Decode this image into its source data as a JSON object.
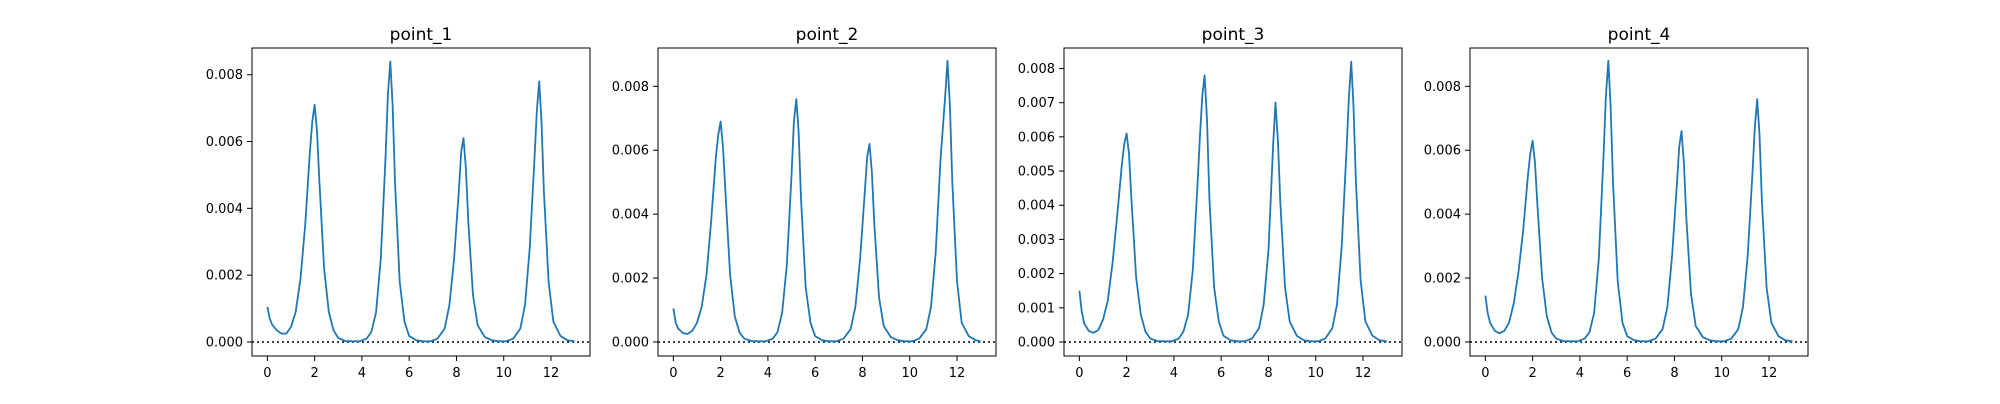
{
  "colors": {
    "line": "#1f77b4",
    "axes": "#000000",
    "background": "#ffffff"
  },
  "chart_data": [
    {
      "type": "line",
      "title": "point_1",
      "xlim": [
        -0.65,
        13.65
      ],
      "ylim": [
        -0.00042,
        0.0088
      ],
      "xticks": [
        "0",
        "2",
        "4",
        "6",
        "8",
        "10",
        "12"
      ],
      "yticks": [
        "0.000",
        "0.002",
        "0.004",
        "0.006",
        "0.008"
      ],
      "reference_line": {
        "y": 0,
        "style": "dotted"
      },
      "peaks": [
        {
          "x": 2.0,
          "y": 0.0071
        },
        {
          "x": 5.2,
          "y": 0.0084
        },
        {
          "x": 8.3,
          "y": 0.0061
        },
        {
          "x": 11.5,
          "y": 0.0078
        }
      ],
      "series": [
        {
          "x": [
            0,
            0.1,
            0.2,
            0.4,
            0.6,
            0.8,
            1.0,
            1.2,
            1.4,
            1.6,
            1.8,
            1.9,
            2.0,
            2.1,
            2.2,
            2.4,
            2.6,
            2.8,
            3.0,
            3.3,
            3.6,
            3.9,
            4.2,
            4.4,
            4.6,
            4.8,
            5.0,
            5.1,
            5.2,
            5.3,
            5.4,
            5.6,
            5.8,
            6.0,
            6.3,
            6.6,
            6.9,
            7.2,
            7.5,
            7.7,
            7.9,
            8.1,
            8.2,
            8.3,
            8.4,
            8.5,
            8.7,
            8.9,
            9.2,
            9.5,
            9.8,
            10.1,
            10.4,
            10.7,
            10.9,
            11.1,
            11.3,
            11.4,
            11.5,
            11.6,
            11.7,
            11.9,
            12.1,
            12.4,
            12.7,
            13.0
          ],
          "y": [
            0.00105,
            0.0007,
            0.00052,
            0.00035,
            0.00025,
            0.00025,
            0.00045,
            0.0009,
            0.0019,
            0.0035,
            0.0057,
            0.0066,
            0.0071,
            0.0063,
            0.0048,
            0.0022,
            0.0009,
            0.00035,
            0.00012,
            3e-05,
            2e-05,
            2e-05,
            0.0001,
            0.0003,
            0.0009,
            0.0025,
            0.0055,
            0.0074,
            0.0084,
            0.0071,
            0.0048,
            0.0018,
            0.0006,
            0.00018,
            5e-05,
            2e-05,
            2e-05,
            0.0001,
            0.0004,
            0.0011,
            0.0025,
            0.0045,
            0.0057,
            0.0061,
            0.0052,
            0.0036,
            0.0014,
            0.0005,
            0.00015,
            5e-05,
            2e-05,
            2e-05,
            0.0001,
            0.0004,
            0.0011,
            0.0028,
            0.0055,
            0.0069,
            0.0078,
            0.0066,
            0.0045,
            0.0018,
            0.0006,
            0.00018,
            5e-05,
            2e-05
          ]
        }
      ]
    },
    {
      "type": "line",
      "title": "point_2",
      "xlim": [
        -0.65,
        13.65
      ],
      "ylim": [
        -0.00044,
        0.0092
      ],
      "xticks": [
        "0",
        "2",
        "4",
        "6",
        "8",
        "10",
        "12"
      ],
      "yticks": [
        "0.000",
        "0.002",
        "0.004",
        "0.006",
        "0.008"
      ],
      "reference_line": {
        "y": 0,
        "style": "dotted"
      },
      "peaks": [
        {
          "x": 2.0,
          "y": 0.0069
        },
        {
          "x": 5.2,
          "y": 0.0076
        },
        {
          "x": 8.3,
          "y": 0.0062
        },
        {
          "x": 11.6,
          "y": 0.0088
        }
      ],
      "series": [
        {
          "x": [
            0,
            0.1,
            0.2,
            0.4,
            0.6,
            0.8,
            1.0,
            1.2,
            1.4,
            1.6,
            1.8,
            1.9,
            2.0,
            2.1,
            2.2,
            2.4,
            2.6,
            2.8,
            3.0,
            3.3,
            3.6,
            3.9,
            4.2,
            4.4,
            4.6,
            4.8,
            5.0,
            5.1,
            5.2,
            5.3,
            5.4,
            5.6,
            5.8,
            6.0,
            6.3,
            6.6,
            6.9,
            7.2,
            7.5,
            7.7,
            7.9,
            8.1,
            8.2,
            8.3,
            8.4,
            8.5,
            8.7,
            8.9,
            9.2,
            9.5,
            9.8,
            10.1,
            10.4,
            10.7,
            10.9,
            11.1,
            11.3,
            11.5,
            11.6,
            11.7,
            11.8,
            12.0,
            12.2,
            12.5,
            12.8,
            13.0
          ],
          "y": [
            0.00105,
            0.0006,
            0.00042,
            0.00028,
            0.00025,
            0.00035,
            0.0006,
            0.0011,
            0.0021,
            0.0038,
            0.0058,
            0.0065,
            0.0069,
            0.0061,
            0.0047,
            0.0021,
            0.0008,
            0.0003,
            0.0001,
            3e-05,
            2e-05,
            2e-05,
            0.0001,
            0.0003,
            0.0009,
            0.0024,
            0.0052,
            0.0069,
            0.0076,
            0.0066,
            0.0045,
            0.0017,
            0.0006,
            0.00018,
            5e-05,
            2e-05,
            2e-05,
            0.0001,
            0.0004,
            0.0011,
            0.0026,
            0.0047,
            0.0058,
            0.0062,
            0.0053,
            0.0037,
            0.0014,
            0.0005,
            0.00015,
            5e-05,
            2e-05,
            2e-05,
            0.0001,
            0.0004,
            0.0011,
            0.0028,
            0.0057,
            0.0077,
            0.0088,
            0.0074,
            0.005,
            0.0019,
            0.0006,
            0.00018,
            5e-05,
            2e-05
          ]
        }
      ]
    },
    {
      "type": "line",
      "title": "point_3",
      "xlim": [
        -0.65,
        13.65
      ],
      "ylim": [
        -0.00041,
        0.0086
      ],
      "xticks": [
        "0",
        "2",
        "4",
        "6",
        "8",
        "10",
        "12"
      ],
      "yticks": [
        "0.000",
        "0.001",
        "0.002",
        "0.003",
        "0.004",
        "0.005",
        "0.006",
        "0.007",
        "0.008"
      ],
      "reference_line": {
        "y": 0,
        "style": "dotted"
      },
      "peaks": [
        {
          "x": 2.0,
          "y": 0.0061
        },
        {
          "x": 5.3,
          "y": 0.0078
        },
        {
          "x": 8.3,
          "y": 0.007
        },
        {
          "x": 11.5,
          "y": 0.0082
        }
      ],
      "series": [
        {
          "x": [
            0,
            0.1,
            0.2,
            0.4,
            0.6,
            0.8,
            1.0,
            1.2,
            1.4,
            1.6,
            1.8,
            1.9,
            2.0,
            2.1,
            2.2,
            2.4,
            2.6,
            2.8,
            3.0,
            3.3,
            3.6,
            3.9,
            4.2,
            4.4,
            4.6,
            4.8,
            5.0,
            5.1,
            5.2,
            5.3,
            5.4,
            5.5,
            5.7,
            5.9,
            6.1,
            6.4,
            6.7,
            7.0,
            7.3,
            7.6,
            7.8,
            8.0,
            8.2,
            8.3,
            8.4,
            8.5,
            8.7,
            8.9,
            9.2,
            9.5,
            9.8,
            10.1,
            10.4,
            10.7,
            10.9,
            11.1,
            11.3,
            11.4,
            11.5,
            11.6,
            11.7,
            11.9,
            12.1,
            12.4,
            12.7,
            13.0
          ],
          "y": [
            0.0015,
            0.0009,
            0.00055,
            0.00032,
            0.00027,
            0.00035,
            0.00065,
            0.0012,
            0.0023,
            0.0037,
            0.0052,
            0.0058,
            0.0061,
            0.0055,
            0.0042,
            0.0019,
            0.0008,
            0.0003,
            0.0001,
            3e-05,
            2e-05,
            2e-05,
            0.0001,
            0.0003,
            0.0008,
            0.0021,
            0.0046,
            0.006,
            0.0072,
            0.0078,
            0.0065,
            0.0042,
            0.0016,
            0.0006,
            0.00018,
            5e-05,
            2e-05,
            2e-05,
            0.0001,
            0.0004,
            0.0011,
            0.0027,
            0.0058,
            0.007,
            0.0059,
            0.0041,
            0.0016,
            0.0006,
            0.00018,
            5e-05,
            2e-05,
            2e-05,
            0.0001,
            0.0004,
            0.0011,
            0.0028,
            0.0056,
            0.0071,
            0.0082,
            0.0069,
            0.0047,
            0.0018,
            0.0006,
            0.00018,
            5e-05,
            2e-05
          ]
        }
      ]
    },
    {
      "type": "line",
      "title": "point_4",
      "xlim": [
        -0.65,
        13.65
      ],
      "ylim": [
        -0.00044,
        0.0092
      ],
      "xticks": [
        "0",
        "2",
        "4",
        "6",
        "8",
        "10",
        "12"
      ],
      "yticks": [
        "0.000",
        "0.002",
        "0.004",
        "0.006",
        "0.008"
      ],
      "reference_line": {
        "y": 0,
        "style": "dotted"
      },
      "peaks": [
        {
          "x": 2.0,
          "y": 0.0063
        },
        {
          "x": 5.2,
          "y": 0.0088
        },
        {
          "x": 8.3,
          "y": 0.0066
        },
        {
          "x": 11.5,
          "y": 0.0076
        }
      ],
      "series": [
        {
          "x": [
            0,
            0.1,
            0.2,
            0.4,
            0.6,
            0.8,
            1.0,
            1.2,
            1.4,
            1.6,
            1.8,
            1.9,
            2.0,
            2.1,
            2.2,
            2.4,
            2.6,
            2.8,
            3.0,
            3.3,
            3.6,
            3.9,
            4.2,
            4.4,
            4.6,
            4.8,
            5.0,
            5.1,
            5.2,
            5.3,
            5.4,
            5.6,
            5.8,
            6.0,
            6.3,
            6.6,
            6.9,
            7.2,
            7.5,
            7.7,
            7.9,
            8.1,
            8.2,
            8.3,
            8.4,
            8.5,
            8.7,
            8.9,
            9.2,
            9.5,
            9.8,
            10.1,
            10.4,
            10.7,
            10.9,
            11.1,
            11.3,
            11.4,
            11.5,
            11.6,
            11.7,
            11.9,
            12.1,
            12.4,
            12.7,
            13.0
          ],
          "y": [
            0.00145,
            0.0009,
            0.0006,
            0.00035,
            0.00027,
            0.00035,
            0.0006,
            0.0012,
            0.0022,
            0.0035,
            0.0052,
            0.0059,
            0.0063,
            0.0056,
            0.0043,
            0.002,
            0.0008,
            0.0003,
            0.0001,
            3e-05,
            2e-05,
            2e-05,
            0.0001,
            0.0003,
            0.0009,
            0.0026,
            0.0058,
            0.0077,
            0.0088,
            0.0074,
            0.005,
            0.0019,
            0.0006,
            0.00018,
            5e-05,
            2e-05,
            2e-05,
            0.0001,
            0.0004,
            0.0011,
            0.0027,
            0.0049,
            0.0061,
            0.0066,
            0.0056,
            0.0039,
            0.0015,
            0.0005,
            0.00015,
            5e-05,
            2e-05,
            2e-05,
            0.0001,
            0.0004,
            0.0011,
            0.0027,
            0.0053,
            0.0067,
            0.0076,
            0.0065,
            0.0044,
            0.0017,
            0.0006,
            0.00018,
            5e-05,
            2e-05
          ]
        }
      ]
    }
  ]
}
